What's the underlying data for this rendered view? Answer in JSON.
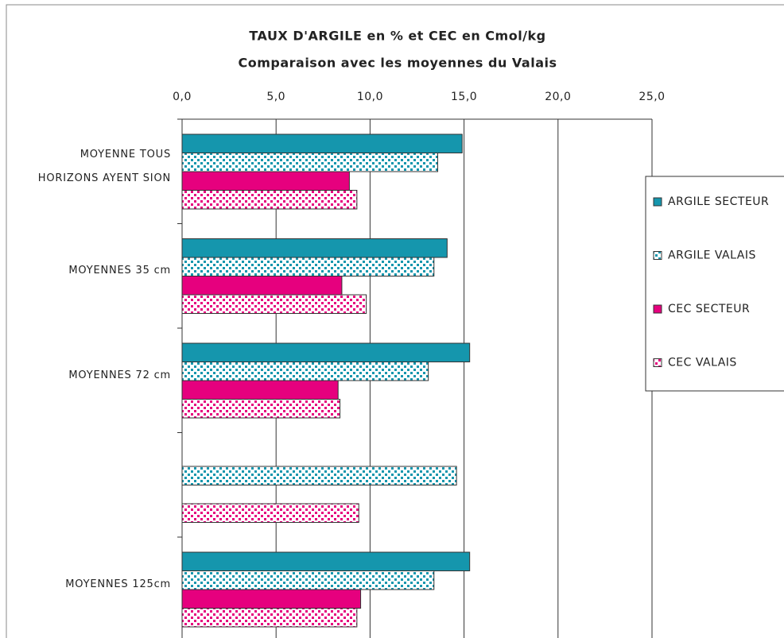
{
  "chart_data": {
    "type": "bar",
    "orientation": "horizontal",
    "title": "TAUX D'ARGILE en % et CEC en Cmol/kg",
    "subtitle": "Comparaison avec les moyennes du Valais",
    "categories": [
      "MOYENNE TOUS HORIZONS AYENT SION",
      "MOYENNES 35 cm",
      "MOYENNES 72 cm",
      null,
      "MOYENNES 125cm"
    ],
    "series": [
      {
        "name": "ARGILE SECTEUR",
        "color": "#1596ad",
        "pattern": false,
        "values": [
          14.9,
          14.1,
          15.3,
          null,
          15.3
        ]
      },
      {
        "name": "ARGILE VALAIS",
        "color": "#1596ad",
        "pattern": true,
        "values": [
          13.6,
          13.4,
          13.1,
          14.6,
          13.4
        ]
      },
      {
        "name": "CEC SECTEUR",
        "color": "#e6007e",
        "pattern": false,
        "values": [
          8.9,
          8.5,
          8.3,
          null,
          9.5
        ]
      },
      {
        "name": "CEC VALAIS",
        "color": "#e6007e",
        "pattern": true,
        "values": [
          9.3,
          9.8,
          8.4,
          9.4,
          9.3
        ]
      }
    ],
    "xlim": [
      0,
      25
    ],
    "xticks": [
      {
        "value": 0,
        "label": "0,0"
      },
      {
        "value": 5,
        "label": "5,0"
      },
      {
        "value": 10,
        "label": "10,0"
      },
      {
        "value": 15,
        "label": "15,0"
      },
      {
        "value": 20,
        "label": "20,0"
      },
      {
        "value": 25,
        "label": "25,0"
      }
    ],
    "grid": true,
    "legend": "right"
  }
}
